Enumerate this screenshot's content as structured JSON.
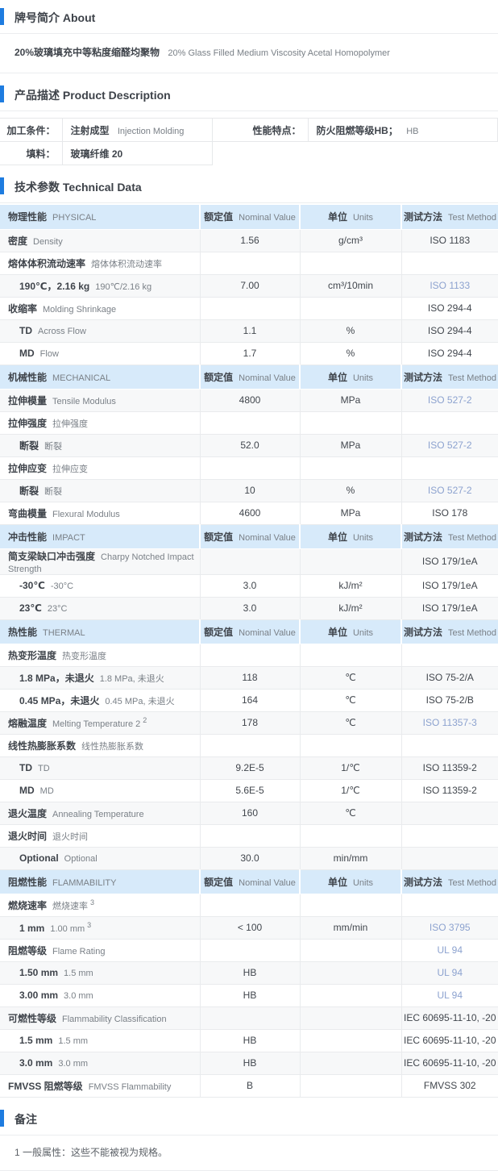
{
  "accent_color": "#1e7ce0",
  "link_color": "#8ca2cf",
  "sections": {
    "about": {
      "title": "牌号简介 About",
      "description_zh": "20%玻璃填充中等粘度缩醛均聚物",
      "description_en": "20% Glass Filled Medium Viscosity Acetal Homopolymer"
    },
    "product": {
      "title": "产品描述 Product Description",
      "row1": {
        "label1": "加工条件：",
        "value1_zh": "注射成型",
        "value1_en": "Injection Molding",
        "label2": "性能特点：",
        "value2_zh": "防火阻燃等级HB；",
        "value2_en": "HB"
      },
      "row2": {
        "label1": "填料：",
        "value1_zh": "玻璃纤维 20"
      }
    },
    "technical": {
      "title": "技术参数 Technical Data",
      "header_cols": {
        "value_zh": "额定值",
        "value_en": "Nominal Value",
        "units_zh": "单位",
        "units_en": "Units",
        "method_zh": "测试方法",
        "method_en": "Test Method"
      },
      "rows": [
        {
          "type": "header",
          "zh": "物理性能",
          "en": "PHYSICAL"
        },
        {
          "type": "data",
          "zh": "密度",
          "en": "Density",
          "value": "1.56",
          "units": "g/cm³",
          "method": "ISO 1183"
        },
        {
          "type": "data",
          "zh": "熔体体积流动速率",
          "en": "熔体体积流动速率",
          "value": "",
          "units": "",
          "method": ""
        },
        {
          "type": "data",
          "indent": true,
          "zh": "190℃，2.16 kg",
          "en": "190℃/2.16 kg",
          "value": "7.00",
          "units": "cm³/10min",
          "method": "ISO 1133",
          "method_link": true
        },
        {
          "type": "data",
          "zh": "收缩率",
          "en": "Molding Shrinkage",
          "value": "",
          "units": "",
          "method": "ISO 294-4"
        },
        {
          "type": "data",
          "indent": true,
          "zh": "TD",
          "en": "Across Flow",
          "value": "1.1",
          "units": "%",
          "method": "ISO 294-4"
        },
        {
          "type": "data",
          "indent": true,
          "zh": "MD",
          "en": "Flow",
          "value": "1.7",
          "units": "%",
          "method": "ISO 294-4"
        },
        {
          "type": "header",
          "zh": "机械性能",
          "en": "MECHANICAL"
        },
        {
          "type": "data",
          "zh": "拉伸模量",
          "en": "Tensile Modulus",
          "value": "4800",
          "units": "MPa",
          "method": "ISO 527-2",
          "method_link": true
        },
        {
          "type": "data",
          "zh": "拉伸强度",
          "en": "拉伸强度",
          "value": "",
          "units": "",
          "method": ""
        },
        {
          "type": "data",
          "indent": true,
          "zh": "断裂",
          "en": "断裂",
          "value": "52.0",
          "units": "MPa",
          "method": "ISO 527-2",
          "method_link": true
        },
        {
          "type": "data",
          "zh": "拉伸应变",
          "en": "拉伸应变",
          "value": "",
          "units": "",
          "method": ""
        },
        {
          "type": "data",
          "indent": true,
          "zh": "断裂",
          "en": "断裂",
          "value": "10",
          "units": "%",
          "method": "ISO 527-2",
          "method_link": true
        },
        {
          "type": "data",
          "zh": "弯曲模量",
          "en": "Flexural Modulus",
          "value": "4600",
          "units": "MPa",
          "method": "ISO 178"
        },
        {
          "type": "header",
          "zh": "冲击性能",
          "en": "IMPACT"
        },
        {
          "type": "data",
          "zh": "简支梁缺口冲击强度",
          "en": "Charpy Notched Impact Strength",
          "value": "",
          "units": "",
          "method": "ISO 179/1eA"
        },
        {
          "type": "data",
          "indent": true,
          "zh": "-30℃",
          "en": "-30°C",
          "value": "3.0",
          "units": "kJ/m²",
          "method": "ISO 179/1eA"
        },
        {
          "type": "data",
          "indent": true,
          "zh": "23℃",
          "en": "23°C",
          "value": "3.0",
          "units": "kJ/m²",
          "method": "ISO 179/1eA"
        },
        {
          "type": "header",
          "zh": "热性能",
          "en": "THERMAL"
        },
        {
          "type": "data",
          "zh": "热变形温度",
          "en": "热变形温度",
          "value": "",
          "units": "",
          "method": ""
        },
        {
          "type": "data",
          "indent": true,
          "zh": "1.8 MPa，未退火",
          "en": "1.8 MPa, 未退火",
          "value": "118",
          "units": "℃",
          "method": "ISO 75-2/A"
        },
        {
          "type": "data",
          "indent": true,
          "zh": "0.45 MPa，未退火",
          "en": "0.45 MPa, 未退火",
          "value": "164",
          "units": "℃",
          "method": "ISO 75-2/B"
        },
        {
          "type": "data",
          "zh": "熔融温度",
          "en": "Melting Temperature 2",
          "sup": "2",
          "value": "178",
          "units": "℃",
          "method": "ISO 11357-3",
          "method_link": true
        },
        {
          "type": "data",
          "zh": "线性热膨胀系数",
          "en": "线性热膨胀系数",
          "value": "",
          "units": "",
          "method": ""
        },
        {
          "type": "data",
          "indent": true,
          "zh": "TD",
          "en": "TD",
          "value": "9.2E-5",
          "units": "1/℃",
          "method": "ISO 11359-2"
        },
        {
          "type": "data",
          "indent": true,
          "zh": "MD",
          "en": "MD",
          "value": "5.6E-5",
          "units": "1/℃",
          "method": "ISO 11359-2"
        },
        {
          "type": "data",
          "zh": "退火温度",
          "en": "Annealing Temperature",
          "value": "160",
          "units": "℃",
          "method": ""
        },
        {
          "type": "data",
          "zh": "退火时间",
          "en": "退火时间",
          "value": "",
          "units": "",
          "method": ""
        },
        {
          "type": "data",
          "indent": true,
          "zh": "Optional",
          "en": "Optional",
          "value": "30.0",
          "units": "min/mm",
          "method": ""
        },
        {
          "type": "header",
          "zh": "阻燃性能",
          "en": "FLAMMABILITY"
        },
        {
          "type": "data",
          "zh": "燃烧速率",
          "en": "燃烧速率",
          "sup": "3",
          "value": "",
          "units": "",
          "method": ""
        },
        {
          "type": "data",
          "indent": true,
          "zh": "1 mm",
          "en": "1.00 mm",
          "sup": "3",
          "value": "< 100",
          "units": "mm/min",
          "method": "ISO 3795",
          "method_link": true
        },
        {
          "type": "data",
          "zh": "阻燃等级",
          "en": "Flame Rating",
          "value": "",
          "units": "",
          "method": "UL 94",
          "method_link": true
        },
        {
          "type": "data",
          "indent": true,
          "zh": "1.50 mm",
          "en": "1.5 mm",
          "value": "HB",
          "units": "",
          "method": "UL 94",
          "method_link": true
        },
        {
          "type": "data",
          "indent": true,
          "zh": "3.00 mm",
          "en": "3.0 mm",
          "value": "HB",
          "units": "",
          "method": "UL 94",
          "method_link": true
        },
        {
          "type": "data",
          "zh": "可燃性等级",
          "en": "Flammability Classification",
          "value": "",
          "units": "",
          "method": "IEC 60695-11-10, -20"
        },
        {
          "type": "data",
          "indent": true,
          "zh": "1.5 mm",
          "en": "1.5 mm",
          "value": "HB",
          "units": "",
          "method": "IEC 60695-11-10, -20"
        },
        {
          "type": "data",
          "indent": true,
          "zh": "3.0 mm",
          "en": "3.0 mm",
          "value": "HB",
          "units": "",
          "method": "IEC 60695-11-10, -20"
        },
        {
          "type": "data",
          "zh": "FMVSS 阻燃等级",
          "en": "FMVSS Flammability",
          "value": "B",
          "units": "",
          "method": "FMVSS 302"
        }
      ]
    },
    "notes": {
      "title": "备注",
      "note": "1 一般属性：这些不能被视为规格。"
    }
  }
}
